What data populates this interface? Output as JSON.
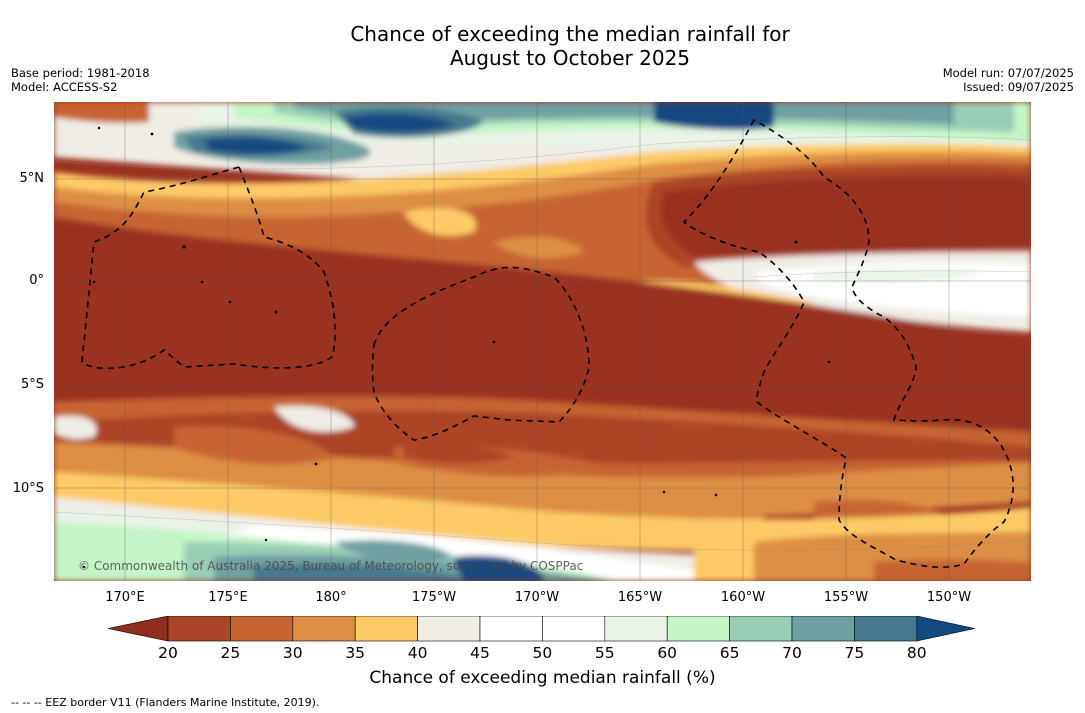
{
  "title_line1": "Chance of exceeding the median rainfall for",
  "title_line2": "August to October 2025",
  "meta_left": {
    "base_period": "Base period: 1981-2018",
    "model": "Model: ACCESS-S2"
  },
  "meta_right": {
    "model_run": "Model run: 07/07/2025",
    "issued": "Issued: 09/07/2025"
  },
  "copyright": "© Commonwealth of Australia 2025, Bureau of Meteorology, supported by COSPPac",
  "lat_labels": [
    "5°N",
    "0°",
    "5°S",
    "10°S"
  ],
  "lon_labels": [
    "170°E",
    "175°E",
    "180°",
    "175°W",
    "170°W",
    "165°W",
    "160°W",
    "155°W",
    "150°W"
  ],
  "colorbar": {
    "ticks": [
      "20",
      "25",
      "30",
      "35",
      "40",
      "45",
      "50",
      "55",
      "60",
      "65",
      "70",
      "75",
      "80"
    ],
    "colors": [
      "#8f2d1e",
      "#ab4527",
      "#c66532",
      "#dd8e44",
      "#fdca66",
      "#f0ece6",
      "#ffffff",
      "#ffffff",
      "#e9f3e7",
      "#c4f5c6",
      "#9acdb6",
      "#6fa0a0",
      "#46788f",
      "#134a82"
    ],
    "label": "Chance of exceeding median rainfall (%)"
  },
  "legend_note": "--  --  -- EEZ border V11 (Flanders Marine Institute, 2019)."
}
